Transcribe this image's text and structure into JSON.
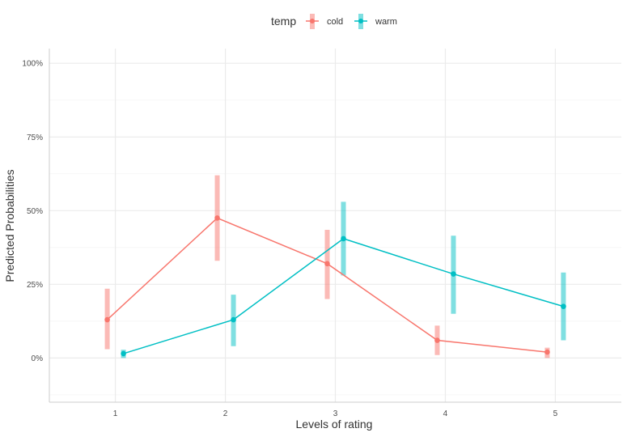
{
  "chart_data": {
    "type": "line",
    "xlabel": "Levels of rating",
    "ylabel": "Predicted Probabilities",
    "categories": [
      "1",
      "2",
      "3",
      "4",
      "5"
    ],
    "y_ticks": [
      "0%",
      "25%",
      "50%",
      "75%",
      "100%"
    ],
    "ylim": [
      -0.15,
      1.05
    ],
    "grid": true,
    "legend": {
      "title": "temp",
      "position": "top"
    },
    "series": [
      {
        "name": "cold",
        "color": "#F8766D",
        "values": [
          0.13,
          0.475,
          0.32,
          0.06,
          0.02
        ],
        "lower": [
          0.03,
          0.33,
          0.2,
          0.01,
          0.0
        ],
        "upper": [
          0.235,
          0.62,
          0.435,
          0.11,
          0.035
        ]
      },
      {
        "name": "warm",
        "color": "#00BFC4",
        "values": [
          0.015,
          0.13,
          0.405,
          0.285,
          0.175
        ],
        "lower": [
          0.0,
          0.04,
          0.28,
          0.15,
          0.06
        ],
        "upper": [
          0.028,
          0.215,
          0.53,
          0.415,
          0.29
        ]
      }
    ]
  }
}
